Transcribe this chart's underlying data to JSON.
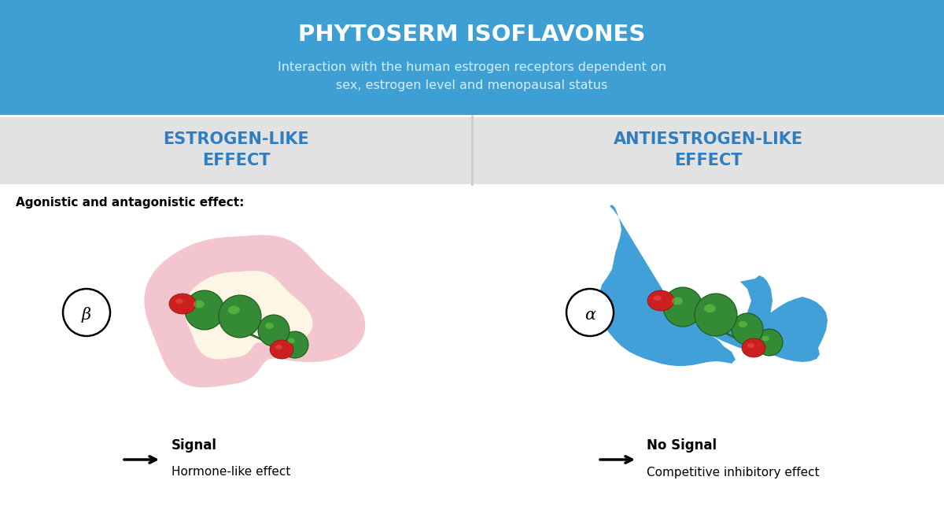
{
  "title": "PHYTOSERM ISOFLAVONES",
  "subtitle_line1": "Interaction with the human estrogen receptors dependent on",
  "subtitle_line2": "sex, estrogen level and menopausal status",
  "header_bg_color": "#3d9fd4",
  "header_text_color": "#d8eefa",
  "header_title_color": "#ffffff",
  "subheader_bg_color": "#e2e2e2",
  "left_label": "ESTROGEN-LIKE\nEFFECT",
  "right_label": "ANTIESTROGEN-LIKE\nEFFECT",
  "label_text_color": "#2e7ec1",
  "agonistic_label": "Agonistic and antagonistic effect:",
  "beta_label": "β",
  "alpha_label": "α",
  "signal_bold": "Signal",
  "signal_normal": "Hormone-like effect",
  "nosignal_bold": "No Signal",
  "nosignal_normal": "Competitive inhibitory effect",
  "pink_receptor_color": "#f0b8c0",
  "pink_glow_color": "#fffce0",
  "blue_receptor_color": "#42a0d8",
  "green_ball_color": "#3a9a3a",
  "green_ball_highlight": "#66cc44",
  "red_ball_color": "#cc2222",
  "white_color": "#ffffff",
  "black_color": "#000000",
  "divider_color": "#cccccc",
  "background_color": "#ffffff"
}
